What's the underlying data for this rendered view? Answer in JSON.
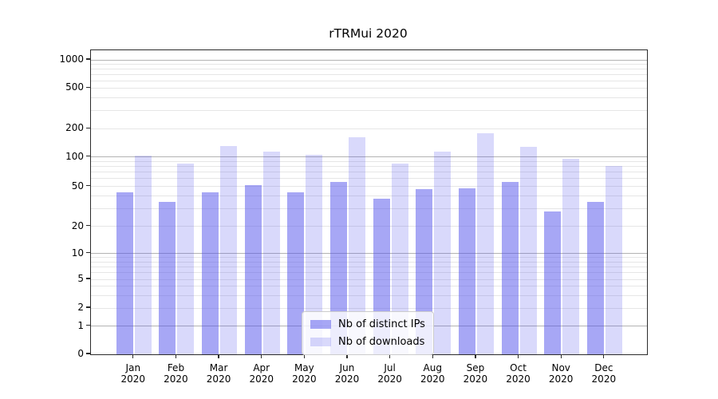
{
  "chart_data": {
    "type": "bar",
    "title": "rTRMui 2020",
    "categories": [
      "Jan",
      "Feb",
      "Mar",
      "Apr",
      "May",
      "Jun",
      "Jul",
      "Aug",
      "Sep",
      "Oct",
      "Nov",
      "Dec"
    ],
    "year_label": "2020",
    "series": [
      {
        "name": "Nb of distinct IPs",
        "values": [
          44,
          35,
          44,
          51,
          44,
          55,
          38,
          47,
          48,
          55,
          28,
          35
        ]
      },
      {
        "name": "Nb of downloads",
        "values": [
          103,
          86,
          130,
          113,
          106,
          162,
          85,
          113,
          180,
          127,
          95,
          80
        ]
      }
    ],
    "xlabel": "",
    "ylabel": "",
    "y_scale": "symlog",
    "y_ticks": [
      0,
      1,
      2,
      5,
      10,
      20,
      50,
      100,
      200,
      500,
      1000
    ],
    "ylim": [
      0,
      1250
    ],
    "grid": "on",
    "legend_position": "lower-center",
    "colors": {
      "bar_distinct_ips": "rgba(80,80,235,0.50)",
      "bar_downloads": "rgba(80,80,235,0.22)",
      "grid_major": "#b3b3b3",
      "grid_minor": "#e6e6e6",
      "axis": "#2b2b2b",
      "text": "#000000"
    }
  },
  "legend": {
    "items": [
      {
        "label": "Nb of distinct IPs"
      },
      {
        "label": "Nb of downloads"
      }
    ]
  },
  "chart": {
    "title": "rTRMui 2020"
  }
}
